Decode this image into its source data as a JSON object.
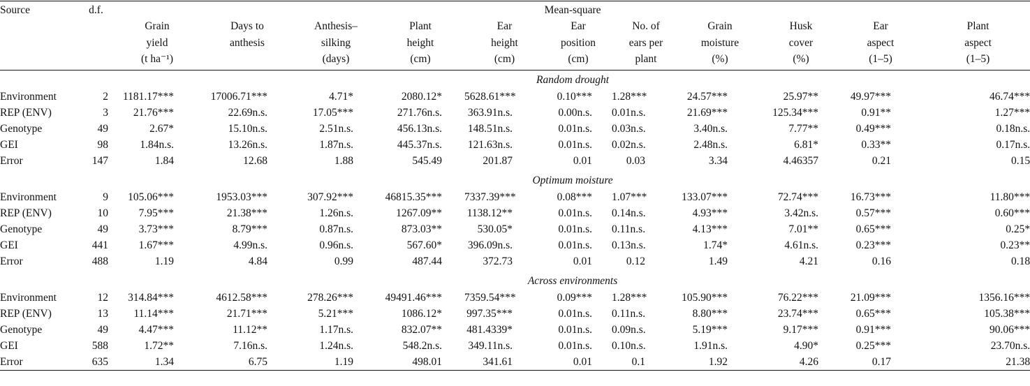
{
  "header": {
    "source": "Source",
    "df": "d.f.",
    "mean_square": "Mean-square",
    "columns": [
      [
        "Grain",
        "yield",
        "(t ha⁻¹)"
      ],
      [
        "Days to",
        "anthesis"
      ],
      [
        "Anthesis–",
        "silking",
        "(days)"
      ],
      [
        "Plant",
        "height",
        "(cm)"
      ],
      [
        "Ear",
        "height",
        "(cm)"
      ],
      [
        "Ear",
        "position",
        "(cm)"
      ],
      [
        "No. of",
        "ears per",
        "plant"
      ],
      [
        "Grain",
        "moisture",
        "(%)"
      ],
      [
        "Husk",
        "cover",
        "(%)"
      ],
      [
        "Ear",
        "aspect",
        "(1–5)"
      ],
      [
        "Plant",
        "aspect",
        "(1–5)"
      ]
    ]
  },
  "sections": [
    {
      "title": "Random drought",
      "rows": [
        {
          "source": "Environment",
          "df": "2",
          "values": [
            "1181.17***",
            "17006.71***",
            "4.71*",
            "2080.12*",
            "5628.61***",
            "0.10***",
            "1.28***",
            "24.57***",
            "25.97**",
            "49.97***",
            "46.74***"
          ]
        },
        {
          "source": "REP (ENV)",
          "df": "3",
          "values": [
            "21.76***",
            "22.69n.s.",
            "17.05***",
            "271.76n.s.",
            "363.91n.s.",
            "0.00n.s.",
            "0.01n.s.",
            "21.69***",
            "125.34***",
            "0.91**",
            "1.27***"
          ]
        },
        {
          "source": "Genotype",
          "df": "49",
          "values": [
            "2.67*",
            "15.10n.s.",
            "2.51n.s.",
            "456.13n.s.",
            "148.51n.s.",
            "0.01n.s.",
            "0.03n.s.",
            "3.40n.s.",
            "7.77**",
            "0.49***",
            "0.18n.s."
          ]
        },
        {
          "source": "GEI",
          "df": "98",
          "values": [
            "1.84n.s.",
            "13.26n.s.",
            "1.87n.s.",
            "445.37n.s.",
            "121.63n.s.",
            "0.01n.s.",
            "0.02n.s.",
            "2.48n.s.",
            "6.81*",
            "0.33**",
            "0.17n.s."
          ]
        },
        {
          "source": "Error",
          "df": "147",
          "values": [
            "1.84",
            "12.68",
            "1.88",
            "545.49",
            "201.87",
            "0.01",
            "0.03",
            "3.34",
            "4.46357",
            "0.21",
            "0.15"
          ]
        }
      ]
    },
    {
      "title": "Optimum moisture",
      "rows": [
        {
          "source": "Environment",
          "df": "9",
          "values": [
            "105.06***",
            "1953.03***",
            "307.92***",
            "46815.35***",
            "7337.39***",
            "0.08***",
            "1.07***",
            "133.07***",
            "72.74***",
            "16.73***",
            "11.80***"
          ]
        },
        {
          "source": "REP (ENV)",
          "df": "10",
          "values": [
            "7.95***",
            "21.38***",
            "1.26n.s.",
            "1267.09**",
            "1138.12**",
            "0.01n.s.",
            "0.14n.s.",
            "4.93***",
            "3.42n.s.",
            "0.57***",
            "0.60***"
          ]
        },
        {
          "source": "Genotype",
          "df": "49",
          "values": [
            "3.73***",
            "8.79***",
            "0.87n.s.",
            "873.03**",
            "530.05*",
            "0.01n.s.",
            "0.11n.s.",
            "4.13***",
            "7.01**",
            "0.65***",
            "0.25*"
          ]
        },
        {
          "source": "GEI",
          "df": "441",
          "values": [
            "1.67***",
            "4.99n.s.",
            "0.96n.s.",
            "567.60*",
            "396.09n.s.",
            "0.01n.s.",
            "0.13n.s.",
            "1.74*",
            "4.61n.s.",
            "0.23***",
            "0.23**"
          ]
        },
        {
          "source": "Error",
          "df": "488",
          "values": [
            "1.19",
            "4.84",
            "0.99",
            "487.44",
            "372.73",
            "0.01",
            "0.12",
            "1.49",
            "4.21",
            "0.16",
            "0.18"
          ]
        }
      ]
    },
    {
      "title": "Across environments",
      "rows": [
        {
          "source": "Environment",
          "df": "12",
          "values": [
            "314.84***",
            "4612.58***",
            "278.26***",
            "49491.46***",
            "7359.54***",
            "0.09***",
            "1.28***",
            "105.90***",
            "76.22***",
            "21.09***",
            "1356.16***"
          ]
        },
        {
          "source": "REP (ENV)",
          "df": "13",
          "values": [
            "11.14***",
            "21.71***",
            "5.21***",
            "1086.12*",
            "997.35***",
            "0.01n.s.",
            "0.11n.s.",
            "8.80***",
            "23.74***",
            "0.65***",
            "105.38***"
          ]
        },
        {
          "source": "Genotype",
          "df": "49",
          "values": [
            "4.47***",
            "11.12**",
            "1.17n.s.",
            "832.07**",
            "481.4339*",
            "0.01n.s.",
            "0.09n.s.",
            "5.19***",
            "9.17***",
            "0.91***",
            "90.06***"
          ]
        },
        {
          "source": "GEI",
          "df": "588",
          "values": [
            "1.72**",
            "7.16n.s.",
            "1.24n.s.",
            "548.2n.s.",
            "349.11n.s.",
            "0.01n.s.",
            "0.10n.s.",
            "1.91n.s.",
            "4.90*",
            "0.25***",
            "23.70n.s."
          ]
        },
        {
          "source": "Error",
          "df": "635",
          "values": [
            "1.34",
            "6.75",
            "1.19",
            "498.01",
            "341.61",
            "0.01",
            "0.1",
            "1.92",
            "4.26",
            "0.17",
            "21.38"
          ]
        }
      ]
    }
  ]
}
